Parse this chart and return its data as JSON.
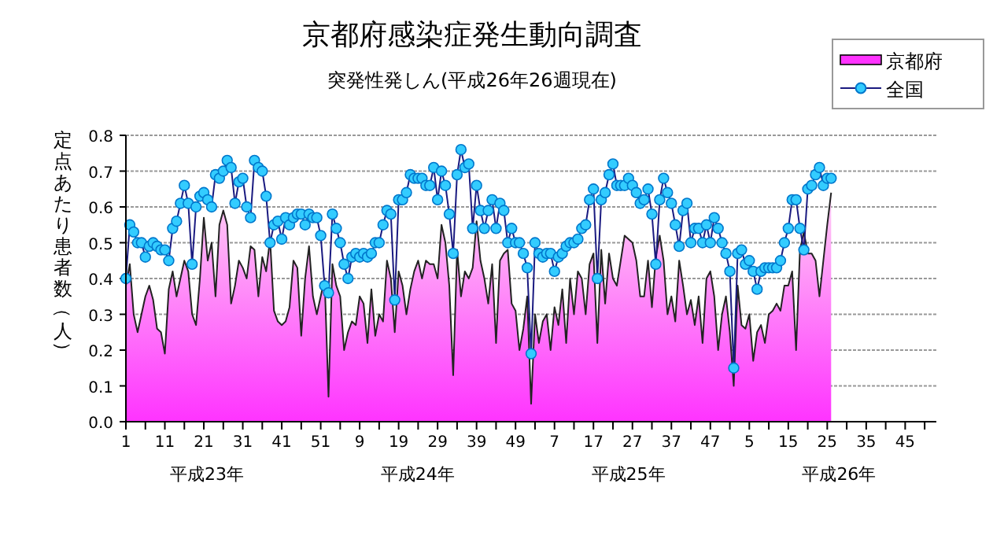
{
  "chart_data": {
    "type": "area",
    "title": "京都府感染症発生動向調査",
    "subtitle": "突発性発しん(平成26年26週現在)",
    "ylabel": "定点あたり患者数（人）",
    "series": [
      {
        "name": "京都府",
        "color": "#ff33ff",
        "values": [
          0.38,
          0.44,
          0.3,
          0.25,
          0.3,
          0.35,
          0.38,
          0.34,
          0.26,
          0.25,
          0.19,
          0.37,
          0.42,
          0.35,
          0.4,
          0.45,
          0.42,
          0.3,
          0.27,
          0.4,
          0.57,
          0.45,
          0.5,
          0.35,
          0.55,
          0.59,
          0.55,
          0.33,
          0.38,
          0.45,
          0.43,
          0.4,
          0.49,
          0.48,
          0.35,
          0.46,
          0.42,
          0.51,
          0.31,
          0.28,
          0.27,
          0.28,
          0.32,
          0.45,
          0.43,
          0.24,
          0.4,
          0.49,
          0.35,
          0.3,
          0.35,
          0.4,
          0.07,
          0.44,
          0.38,
          0.35,
          0.2,
          0.25,
          0.28,
          0.27,
          0.35,
          0.33,
          0.22,
          0.37,
          0.24,
          0.3,
          0.28,
          0.45,
          0.4,
          0.25,
          0.42,
          0.38,
          0.3,
          0.37,
          0.42,
          0.45,
          0.4,
          0.45,
          0.44,
          0.44,
          0.4,
          0.55,
          0.5,
          0.38,
          0.13,
          0.48,
          0.35,
          0.42,
          0.4,
          0.43,
          0.56,
          0.45,
          0.4,
          0.33,
          0.44,
          0.22,
          0.45,
          0.47,
          0.48,
          0.33,
          0.31,
          0.2,
          0.26,
          0.35,
          0.05,
          0.3,
          0.22,
          0.28,
          0.3,
          0.2,
          0.32,
          0.27,
          0.37,
          0.22,
          0.4,
          0.3,
          0.42,
          0.4,
          0.3,
          0.44,
          0.47,
          0.22,
          0.48,
          0.33,
          0.47,
          0.4,
          0.38,
          0.45,
          0.52,
          0.51,
          0.5,
          0.45,
          0.35,
          0.35,
          0.45,
          0.32,
          0.46,
          0.52,
          0.45,
          0.3,
          0.35,
          0.28,
          0.45,
          0.38,
          0.3,
          0.34,
          0.27,
          0.35,
          0.22,
          0.4,
          0.42,
          0.35,
          0.2,
          0.3,
          0.35,
          0.25,
          0.1,
          0.38,
          0.27,
          0.26,
          0.3,
          0.17,
          0.25,
          0.27,
          0.22,
          0.3,
          0.31,
          0.33,
          0.31,
          0.38,
          0.38,
          0.42,
          0.2,
          0.48,
          0.53,
          0.47,
          0.47,
          0.45,
          0.35,
          0.45,
          0.55,
          0.64,
          null,
          null,
          null,
          null,
          null,
          null,
          null,
          null,
          null,
          null,
          null,
          null,
          null,
          null,
          null,
          null,
          null,
          null,
          null,
          null,
          null,
          null,
          null,
          null,
          null,
          null
        ]
      },
      {
        "name": "全国",
        "type": "line",
        "marker": "circle",
        "color": "#33ccff",
        "values": [
          0.4,
          0.55,
          0.53,
          0.5,
          0.5,
          0.46,
          0.49,
          0.5,
          0.49,
          0.48,
          0.48,
          0.45,
          0.54,
          0.56,
          0.61,
          0.66,
          0.61,
          0.44,
          0.6,
          0.63,
          0.64,
          0.62,
          0.6,
          0.69,
          0.68,
          0.7,
          0.73,
          0.71,
          0.61,
          0.67,
          0.68,
          0.6,
          0.57,
          0.73,
          0.71,
          0.7,
          0.63,
          0.5,
          0.55,
          0.56,
          0.51,
          0.57,
          0.55,
          0.57,
          0.58,
          0.58,
          0.55,
          0.58,
          0.57,
          0.57,
          0.52,
          0.38,
          0.36,
          0.58,
          0.54,
          0.5,
          0.44,
          0.4,
          0.46,
          0.47,
          0.46,
          0.47,
          0.46,
          0.47,
          0.5,
          0.5,
          0.55,
          0.59,
          0.58,
          0.34,
          0.62,
          0.62,
          0.64,
          0.69,
          0.68,
          0.68,
          0.68,
          0.66,
          0.66,
          0.71,
          0.62,
          0.7,
          0.66,
          0.58,
          0.47,
          0.69,
          0.76,
          0.71,
          0.72,
          0.54,
          0.66,
          0.59,
          0.54,
          0.59,
          0.62,
          0.54,
          0.61,
          0.59,
          0.5,
          0.54,
          0.5,
          0.5,
          0.47,
          0.43,
          0.19,
          0.5,
          0.47,
          0.46,
          0.47,
          0.47,
          0.42,
          0.46,
          0.47,
          0.49,
          0.5,
          0.5,
          0.51,
          0.54,
          0.55,
          0.62,
          0.65,
          0.4,
          0.62,
          0.64,
          0.69,
          0.72,
          0.66,
          0.66,
          0.66,
          0.68,
          0.66,
          0.64,
          0.61,
          0.62,
          0.65,
          0.58,
          0.44,
          0.62,
          0.68,
          0.64,
          0.61,
          0.55,
          0.49,
          0.59,
          0.61,
          0.5,
          0.54,
          0.54,
          0.5,
          0.55,
          0.5,
          0.57,
          0.54,
          0.5,
          0.47,
          0.42,
          0.15,
          0.47,
          0.48,
          0.44,
          0.45,
          0.42,
          0.37,
          0.42,
          0.43,
          0.43,
          0.43,
          0.43,
          0.45,
          0.5,
          0.54,
          0.62,
          0.62,
          0.54,
          0.48,
          0.65,
          0.66,
          0.69,
          0.71,
          0.66,
          0.68,
          0.68,
          null,
          null,
          null,
          null,
          null,
          null,
          null,
          null,
          null,
          null,
          null,
          null,
          null,
          null,
          null,
          null,
          null,
          null,
          null,
          null,
          null,
          null,
          null,
          null,
          null,
          null
        ]
      }
    ],
    "categories": [
      "1",
      null,
      null,
      null,
      null,
      null,
      null,
      null,
      null,
      null,
      "11",
      null,
      null,
      null,
      null,
      null,
      null,
      null,
      null,
      null,
      "21",
      null,
      null,
      null,
      null,
      null,
      null,
      null,
      null,
      null,
      "31",
      null,
      null,
      null,
      null,
      null,
      null,
      null,
      null,
      null,
      "41",
      null,
      null,
      null,
      null,
      null,
      null,
      null,
      null,
      null,
      "51",
      null,
      null,
      null,
      null,
      null,
      null,
      null,
      null,
      null,
      "9",
      null,
      null,
      null,
      null,
      null,
      null,
      null,
      null,
      null,
      "19",
      null,
      null,
      null,
      null,
      null,
      null,
      null,
      null,
      null,
      "29",
      null,
      null,
      null,
      null,
      null,
      null,
      null,
      null,
      null,
      "39",
      null,
      null,
      null,
      null,
      null,
      null,
      null,
      null,
      null,
      "49",
      null,
      null,
      null,
      null,
      null,
      null,
      null,
      null,
      null,
      "7",
      null,
      null,
      null,
      null,
      null,
      null,
      null,
      null,
      null,
      "17",
      null,
      null,
      null,
      null,
      null,
      null,
      null,
      null,
      null,
      "27",
      null,
      null,
      null,
      null,
      null,
      null,
      null,
      null,
      null,
      "37",
      null,
      null,
      null,
      null,
      null,
      null,
      null,
      null,
      null,
      "47",
      null,
      null,
      null,
      null,
      null,
      null,
      null,
      null,
      null,
      "5",
      null,
      null,
      null,
      null,
      null,
      null,
      null,
      null,
      null,
      "15",
      null,
      null,
      null,
      null,
      null,
      null,
      null,
      null,
      null,
      "25",
      null,
      null,
      null,
      null,
      null,
      null,
      null,
      null,
      null,
      "35",
      null,
      null,
      null,
      null,
      null,
      null,
      null,
      null,
      null,
      "45",
      null,
      null,
      null,
      null,
      null,
      null,
      null
    ],
    "ylim": [
      0,
      0.8
    ],
    "yticks": [
      {
        "value": 0,
        "label": "0.0"
      },
      0.1,
      0.2,
      0.3,
      0.4,
      0.5,
      0.6,
      0.7,
      0.8
    ],
    "grid": "y",
    "legend": "top right",
    "annotations": [
      "平成23年",
      "平成24年",
      "平成25年",
      "平成26年"
    ]
  }
}
